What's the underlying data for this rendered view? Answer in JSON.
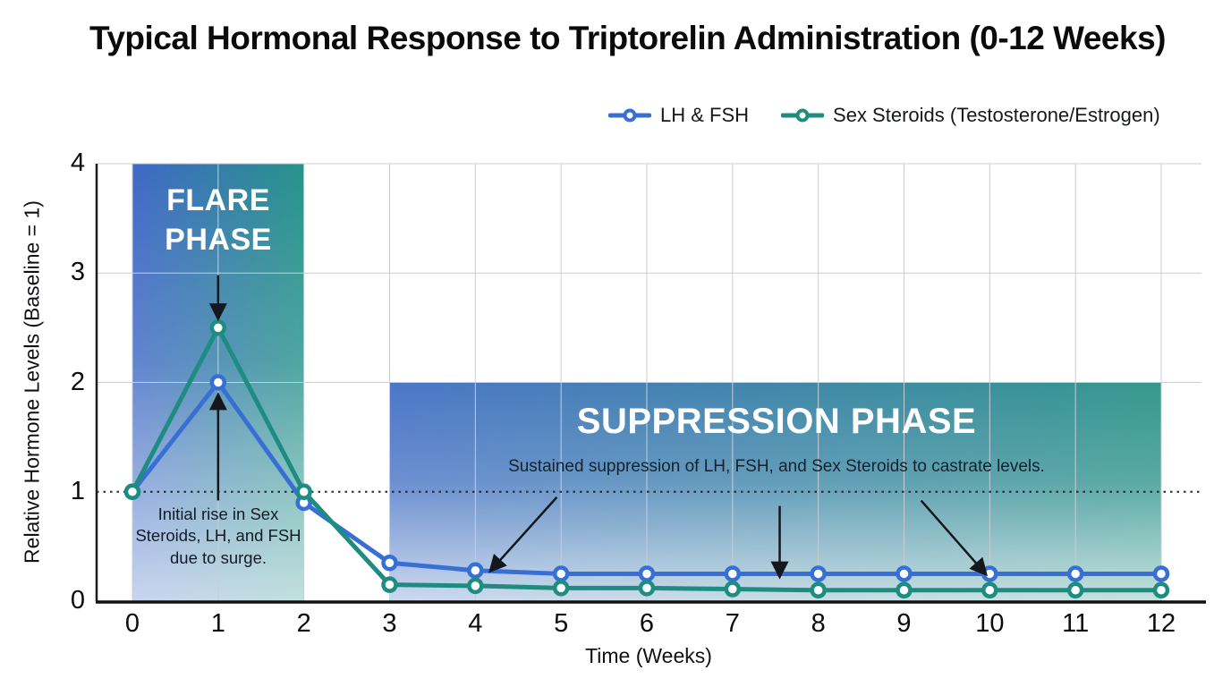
{
  "title": "Typical Hormonal Response to Triptorelin Administration (0-12 Weeks)",
  "legend": {
    "items": [
      {
        "label": "LH & FSH",
        "color": "#386fd5"
      },
      {
        "label": "Sex Steroids (Testosterone/Estrogen)",
        "color": "#1e8c81"
      }
    ]
  },
  "axes": {
    "x_label": "Time (Weeks)",
    "y_label": "Relative Hormone Levels (Baseline = 1)",
    "x_ticks": [
      0,
      1,
      2,
      3,
      4,
      5,
      6,
      7,
      8,
      9,
      10,
      11,
      12
    ],
    "y_ticks": [
      0,
      1,
      2,
      3,
      4
    ]
  },
  "chart_data": {
    "type": "line",
    "title": "Typical Hormonal Response to Triptorelin Administration (0-12 Weeks)",
    "xlabel": "Time (Weeks)",
    "ylabel": "Relative Hormone Levels (Baseline = 1)",
    "xlim": [
      0,
      12
    ],
    "ylim": [
      0,
      4
    ],
    "grid": true,
    "legend_position": "top",
    "baseline": {
      "y": 1,
      "style": "dotted"
    },
    "x": [
      0,
      1,
      2,
      3,
      4,
      5,
      6,
      7,
      8,
      9,
      10,
      11,
      12
    ],
    "series": [
      {
        "name": "LH & FSH",
        "color": "#386fd5",
        "values": [
          1,
          2,
          0.9,
          0.35,
          0.28,
          0.25,
          0.25,
          0.25,
          0.25,
          0.25,
          0.25,
          0.25,
          0.25
        ]
      },
      {
        "name": "Sex Steroids (Testosterone/Estrogen)",
        "color": "#1e8c81",
        "values": [
          1,
          2.5,
          1,
          0.15,
          0.14,
          0.12,
          0.12,
          0.11,
          0.1,
          0.1,
          0.1,
          0.1,
          0.1
        ]
      }
    ],
    "regions": [
      {
        "name": "flare",
        "label": "FLARE PHASE",
        "note": "Initial rise in Sex Steroids, LH, and FSH due to surge.",
        "x0": 0,
        "x1": 2,
        "y0": 0,
        "y1": 4,
        "gradient": [
          "#3f68c6",
          "#27938a"
        ]
      },
      {
        "name": "suppression",
        "label": "SUPPRESSION PHASE",
        "note": "Sustained suppression of LH, FSH, and Sex Steroids to castrate levels.",
        "x0": 3,
        "x1": 12,
        "y0": 0,
        "y1": 2,
        "gradient": [
          "#4c76c7",
          "#35988e"
        ]
      }
    ],
    "arrows": [
      {
        "from": [
          1,
          2.98
        ],
        "to": [
          1,
          2.59
        ]
      },
      {
        "from": [
          1,
          0.92
        ],
        "to": [
          1,
          1.88
        ]
      },
      {
        "from": [
          4.95,
          0.95
        ],
        "to": [
          4.18,
          0.28
        ]
      },
      {
        "from": [
          7.55,
          0.87
        ],
        "to": [
          7.55,
          0.23
        ]
      },
      {
        "from": [
          9.2,
          0.92
        ],
        "to": [
          9.95,
          0.25
        ]
      }
    ]
  }
}
